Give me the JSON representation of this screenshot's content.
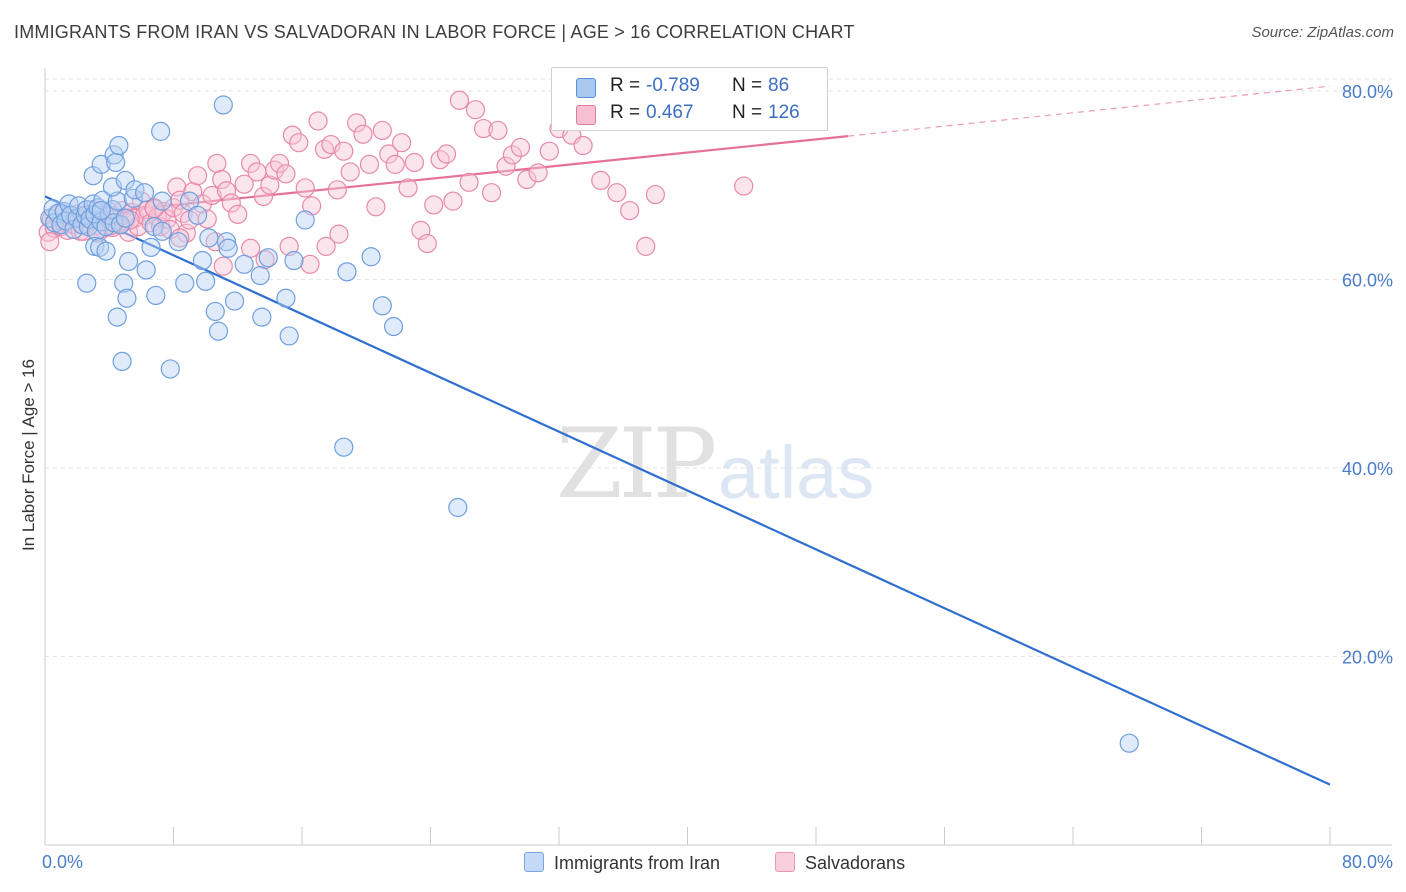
{
  "header": {
    "title": "IMMIGRANTS FROM IRAN VS SALVADORAN IN LABOR FORCE | AGE > 16 CORRELATION CHART",
    "source": "Source: ZipAtlas.com"
  },
  "watermark": {
    "zip": "ZIP",
    "atlas": "atlas"
  },
  "legend": {
    "r_label": "R =",
    "n_label": "N =",
    "rows": [
      {
        "color": "#a9c8f0",
        "border": "#5b8fd6",
        "r": "-0.789",
        "n": "86"
      },
      {
        "color": "#f7bfd2",
        "border": "#e07aa0",
        "r": "0.467",
        "n": "126"
      }
    ]
  },
  "bottom_legend": [
    {
      "label": "Immigrants from Iran",
      "color": "#c4d9f5",
      "border": "#7aa6e0"
    },
    {
      "label": "Salvadorans",
      "color": "#f9cfdd",
      "border": "#e898b4"
    }
  ],
  "chart_data": {
    "type": "scatter",
    "title": "IMMIGRANTS FROM IRAN VS SALVADORAN IN LABOR FORCE | AGE > 16 CORRELATION CHART",
    "xlabel": "",
    "ylabel": "In Labor Force | Age > 16",
    "xlim": [
      0,
      80
    ],
    "ylim": [
      0,
      82
    ],
    "x_tick_labels": [
      "0.0%",
      "80.0%"
    ],
    "y_ticks": [
      20,
      40,
      60,
      80
    ],
    "y_tick_labels": [
      "20.0%",
      "40.0%",
      "60.0%",
      "80.0%"
    ],
    "grid": true,
    "legend_position": "top-center",
    "series": [
      {
        "name": "Immigrants from Iran",
        "color": "#6f9fdf",
        "fill": "#b8d2f3",
        "trend": {
          "x": [
            0,
            80
          ],
          "y": [
            68.8,
            6.4
          ],
          "style": "solid",
          "color": "#2f6fcf"
        },
        "points": [
          [
            0.3,
            66.5
          ],
          [
            0.5,
            67.5
          ],
          [
            0.6,
            66.0
          ],
          [
            0.8,
            67.0
          ],
          [
            1.0,
            65.8
          ],
          [
            1.2,
            67.2
          ],
          [
            1.3,
            66.2
          ],
          [
            1.5,
            68.0
          ],
          [
            1.6,
            66.8
          ],
          [
            1.8,
            65.3
          ],
          [
            2.0,
            66.5
          ],
          [
            2.1,
            67.8
          ],
          [
            2.3,
            65.8
          ],
          [
            2.5,
            66.8
          ],
          [
            2.6,
            67.4
          ],
          [
            2.7,
            65.6
          ],
          [
            2.8,
            66.4
          ],
          [
            3.0,
            68.0
          ],
          [
            3.1,
            66.9
          ],
          [
            3.2,
            65.1
          ],
          [
            3.3,
            67.6
          ],
          [
            3.5,
            66.1
          ],
          [
            3.6,
            68.4
          ],
          [
            3.8,
            65.6
          ],
          [
            4.0,
            66.8
          ],
          [
            4.2,
            67.4
          ],
          [
            4.3,
            66.0
          ],
          [
            4.5,
            68.3
          ],
          [
            4.7,
            65.8
          ],
          [
            5.0,
            66.5
          ],
          [
            2.6,
            59.6
          ],
          [
            3.0,
            71.0
          ],
          [
            3.1,
            63.5
          ],
          [
            3.4,
            63.4
          ],
          [
            3.5,
            67.3
          ],
          [
            3.8,
            63.0
          ],
          [
            3.5,
            72.2
          ],
          [
            4.2,
            69.8
          ],
          [
            4.3,
            73.2
          ],
          [
            4.4,
            72.4
          ],
          [
            4.6,
            74.2
          ],
          [
            4.5,
            56.0
          ],
          [
            4.8,
            51.3
          ],
          [
            4.9,
            59.6
          ],
          [
            5.1,
            58.0
          ],
          [
            5.2,
            61.9
          ],
          [
            5.0,
            70.5
          ],
          [
            5.5,
            68.6
          ],
          [
            5.6,
            69.5
          ],
          [
            6.3,
            61.0
          ],
          [
            6.6,
            63.4
          ],
          [
            6.8,
            65.6
          ],
          [
            6.9,
            58.3
          ],
          [
            7.2,
            75.7
          ],
          [
            7.3,
            68.3
          ],
          [
            7.8,
            50.5
          ],
          [
            7.3,
            65.1
          ],
          [
            8.3,
            64.0
          ],
          [
            8.7,
            59.6
          ],
          [
            9.0,
            68.3
          ],
          [
            9.5,
            66.8
          ],
          [
            9.8,
            62.0
          ],
          [
            10.0,
            59.8
          ],
          [
            10.2,
            64.4
          ],
          [
            10.6,
            56.6
          ],
          [
            10.8,
            54.5
          ],
          [
            11.3,
            64.0
          ],
          [
            11.4,
            63.3
          ],
          [
            11.8,
            57.7
          ],
          [
            12.4,
            61.6
          ],
          [
            13.4,
            60.4
          ],
          [
            13.5,
            56.0
          ],
          [
            13.9,
            62.3
          ],
          [
            15.0,
            58.0
          ],
          [
            15.2,
            54.0
          ],
          [
            15.5,
            62.0
          ],
          [
            16.2,
            66.3
          ],
          [
            18.6,
            42.2
          ],
          [
            18.8,
            60.8
          ],
          [
            20.3,
            62.4
          ],
          [
            21.0,
            57.2
          ],
          [
            21.7,
            55.0
          ],
          [
            11.1,
            78.5
          ],
          [
            25.7,
            35.8
          ],
          [
            67.5,
            10.8
          ],
          [
            6.2,
            69.2
          ]
        ]
      },
      {
        "name": "Salvadorans",
        "color": "#e889aa",
        "fill": "#f7c6d6",
        "trend": {
          "x": [
            0,
            50
          ],
          "y": [
            66.5,
            75.2
          ],
          "style": "solid",
          "color": "#e5709a",
          "dashed_extension": {
            "x": [
              50,
              80
            ],
            "y": [
              75.2,
              80.5
            ]
          }
        },
        "points": [
          [
            0.2,
            65.0
          ],
          [
            0.4,
            66.4
          ],
          [
            0.6,
            65.4
          ],
          [
            0.8,
            66.8
          ],
          [
            1.0,
            65.6
          ],
          [
            1.2,
            66.0
          ],
          [
            1.4,
            65.2
          ],
          [
            1.6,
            66.6
          ],
          [
            1.8,
            65.8
          ],
          [
            2.0,
            66.3
          ],
          [
            2.2,
            65.1
          ],
          [
            2.4,
            66.7
          ],
          [
            2.6,
            65.9
          ],
          [
            2.8,
            66.3
          ],
          [
            3.0,
            67.4
          ],
          [
            3.2,
            65.7
          ],
          [
            3.4,
            66.8
          ],
          [
            3.6,
            65.4
          ],
          [
            3.8,
            66.1
          ],
          [
            4.0,
            67.2
          ],
          [
            4.2,
            65.5
          ],
          [
            4.4,
            66.6
          ],
          [
            4.6,
            65.9
          ],
          [
            4.8,
            67.3
          ],
          [
            5.0,
            66.2
          ],
          [
            5.2,
            65.0
          ],
          [
            5.4,
            67.1
          ],
          [
            5.6,
            66.5
          ],
          [
            5.8,
            65.6
          ],
          [
            6.0,
            68.3
          ],
          [
            6.2,
            66.8
          ],
          [
            6.4,
            67.4
          ],
          [
            6.6,
            66.0
          ],
          [
            6.8,
            67.6
          ],
          [
            7.0,
            66.6
          ],
          [
            7.2,
            65.6
          ],
          [
            7.4,
            67.2
          ],
          [
            7.6,
            66.4
          ],
          [
            7.8,
            65.3
          ],
          [
            8.0,
            67.6
          ],
          [
            8.2,
            69.8
          ],
          [
            8.4,
            68.4
          ],
          [
            8.6,
            67.0
          ],
          [
            8.8,
            64.9
          ],
          [
            9.0,
            66.3
          ],
          [
            9.2,
            69.3
          ],
          [
            9.5,
            71.0
          ],
          [
            9.8,
            68.0
          ],
          [
            10.1,
            66.4
          ],
          [
            10.4,
            68.9
          ],
          [
            10.7,
            72.3
          ],
          [
            11.0,
            70.6
          ],
          [
            11.3,
            69.4
          ],
          [
            11.6,
            68.1
          ],
          [
            12.0,
            66.9
          ],
          [
            12.4,
            70.1
          ],
          [
            12.8,
            72.3
          ],
          [
            13.2,
            71.4
          ],
          [
            13.6,
            68.8
          ],
          [
            14.0,
            70.0
          ],
          [
            14.3,
            71.6
          ],
          [
            14.6,
            72.3
          ],
          [
            15.0,
            71.2
          ],
          [
            15.4,
            75.3
          ],
          [
            15.8,
            74.5
          ],
          [
            16.2,
            69.7
          ],
          [
            16.6,
            67.8
          ],
          [
            17.0,
            76.8
          ],
          [
            17.4,
            73.8
          ],
          [
            17.8,
            74.3
          ],
          [
            18.2,
            69.5
          ],
          [
            18.6,
            73.6
          ],
          [
            19.0,
            71.4
          ],
          [
            19.4,
            76.6
          ],
          [
            19.8,
            75.4
          ],
          [
            20.2,
            72.2
          ],
          [
            20.6,
            67.7
          ],
          [
            21.0,
            75.8
          ],
          [
            21.4,
            73.3
          ],
          [
            21.8,
            72.2
          ],
          [
            22.2,
            74.5
          ],
          [
            22.6,
            69.7
          ],
          [
            23.0,
            72.4
          ],
          [
            23.4,
            65.2
          ],
          [
            23.8,
            63.8
          ],
          [
            24.2,
            67.9
          ],
          [
            24.6,
            72.7
          ],
          [
            25.0,
            73.3
          ],
          [
            25.4,
            68.3
          ],
          [
            25.8,
            79.0
          ],
          [
            26.4,
            70.3
          ],
          [
            26.8,
            78.0
          ],
          [
            27.3,
            76.0
          ],
          [
            27.8,
            69.2
          ],
          [
            28.2,
            75.8
          ],
          [
            28.7,
            72.0
          ],
          [
            29.1,
            73.2
          ],
          [
            29.6,
            74.0
          ],
          [
            30.0,
            70.6
          ],
          [
            30.7,
            71.3
          ],
          [
            31.4,
            73.6
          ],
          [
            32.0,
            76.0
          ],
          [
            32.8,
            75.3
          ],
          [
            33.5,
            74.2
          ],
          [
            34.6,
            70.5
          ],
          [
            35.6,
            69.2
          ],
          [
            36.4,
            67.3
          ],
          [
            37.4,
            63.5
          ],
          [
            38.0,
            69.0
          ],
          [
            43.5,
            69.9
          ],
          [
            12.8,
            63.3
          ],
          [
            13.7,
            62.1
          ],
          [
            16.5,
            61.6
          ],
          [
            17.5,
            63.5
          ],
          [
            11.1,
            61.4
          ],
          [
            10.6,
            64.0
          ],
          [
            6.8,
            67.5
          ],
          [
            8.4,
            64.4
          ],
          [
            15.2,
            63.5
          ],
          [
            18.3,
            64.8
          ],
          [
            0.3,
            64.0
          ],
          [
            1.9,
            66.9
          ],
          [
            2.4,
            65.1
          ],
          [
            3.3,
            64.9
          ],
          [
            4.1,
            65.7
          ],
          [
            5.3,
            66.3
          ]
        ]
      }
    ]
  }
}
